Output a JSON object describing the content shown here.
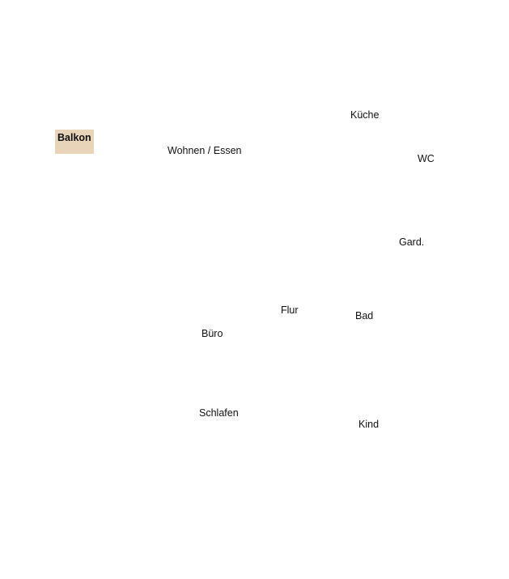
{
  "rooms": {
    "balkon": "Balkon",
    "wohnen": "Wohnen / Essen",
    "kueche": "Küche",
    "wc": "WC",
    "gard": "Gard.",
    "flur": "Flur",
    "bad": "Bad",
    "buero": "Büro",
    "schlafen": "Schlafen",
    "kind": "Kind"
  },
  "colors": {
    "balkon_fill": "#e8d5b9"
  }
}
